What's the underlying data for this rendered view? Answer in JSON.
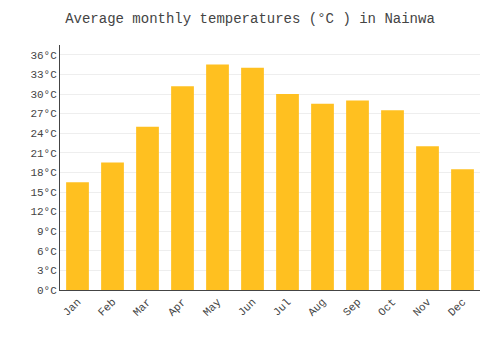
{
  "chart_data": {
    "type": "bar",
    "title": "Average monthly temperatures (°C ) in Nainwa",
    "categories": [
      "Jan",
      "Feb",
      "Mar",
      "Apr",
      "May",
      "Jun",
      "Jul",
      "Aug",
      "Sep",
      "Oct",
      "Nov",
      "Dec"
    ],
    "values": [
      16.5,
      19.5,
      25.0,
      31.2,
      34.5,
      34.0,
      30.0,
      28.5,
      29.0,
      27.5,
      22.0,
      18.5
    ],
    "color": "#FFC020",
    "ylim": [
      0,
      37.5
    ],
    "yticks": [
      {
        "value": 0,
        "label": "0°C"
      },
      {
        "value": 3,
        "label": "3°C"
      },
      {
        "value": 6,
        "label": "6°C"
      },
      {
        "value": 9,
        "label": "9°C"
      },
      {
        "value": 12,
        "label": "12°C"
      },
      {
        "value": 15,
        "label": "15°C"
      },
      {
        "value": 18,
        "label": "18°C"
      },
      {
        "value": 21,
        "label": "21°C"
      },
      {
        "value": 24,
        "label": "24°C"
      },
      {
        "value": 27,
        "label": "27°C"
      },
      {
        "value": 30,
        "label": "30°C"
      },
      {
        "value": 33,
        "label": "33°C"
      },
      {
        "value": 36,
        "label": "36°C"
      }
    ],
    "grid": true
  }
}
